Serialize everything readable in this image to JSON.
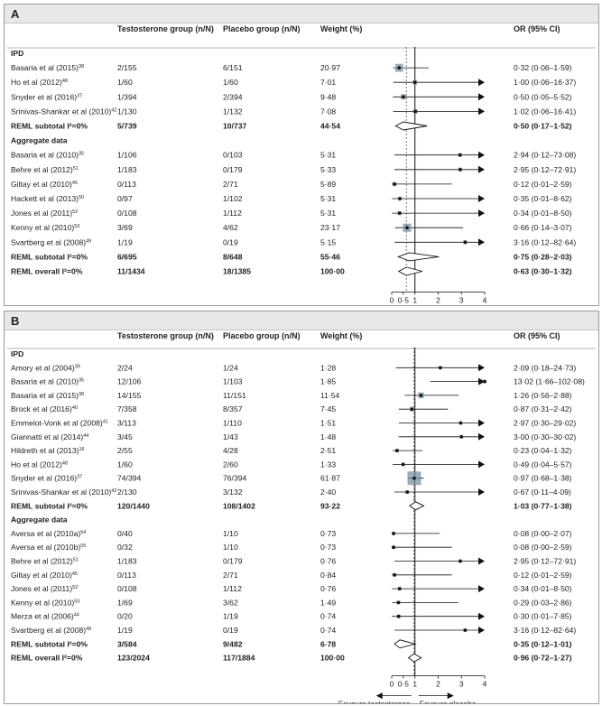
{
  "colors": {
    "header_bg": "#e8e8e8",
    "ci_box": "#7b8fa1",
    "text": "#222222"
  },
  "columns": {
    "study": "",
    "testosterone": "Testosterone group (n/N)",
    "placebo": "Placebo group (n/N)",
    "weight": "Weight (%)",
    "or": "OR (95% CI)"
  },
  "axis": {
    "tick_labels": [
      "0",
      "0·5",
      "1",
      "2",
      "3",
      "4"
    ],
    "favours_left": "Favours testosterone",
    "favours_right": "Favours placebo"
  },
  "chart_data": [
    {
      "panel": "A",
      "type": "forest",
      "xlim": [
        0,
        4
      ],
      "null_line": 1,
      "overall_dashed": 0.63,
      "arrow_cap": 4,
      "rows": [
        {
          "kind": "section",
          "label": "IPD"
        },
        {
          "kind": "study",
          "label": "Basaria et al (2015)",
          "sup": "38",
          "t": "2/155",
          "p": "6/151",
          "w": "20·97",
          "or": "0·32 (0·06–1·59)",
          "est": 0.32,
          "lo": 0.06,
          "hi": 1.59
        },
        {
          "kind": "study",
          "label": "Ho et al (2012)",
          "sup": "48",
          "t": "1/60",
          "p": "1/60",
          "w": "7·01",
          "or": "1·00 (0·06–16·37)",
          "est": 1.0,
          "lo": 0.06,
          "hi": 16.37
        },
        {
          "kind": "study",
          "label": "Snyder et al (2016)",
          "sup": "37",
          "t": "1/394",
          "p": "2/394",
          "w": "9·48",
          "or": "0·50 (0·05–5·52)",
          "est": 0.5,
          "lo": 0.05,
          "hi": 5.52
        },
        {
          "kind": "study",
          "label": "Srinivas-Shankar et al (2010)",
          "sup": "42",
          "t": "1/130",
          "p": "1/132",
          "w": "7·08",
          "or": "1·02 (0·06–16·41)",
          "est": 1.02,
          "lo": 0.06,
          "hi": 16.41
        },
        {
          "kind": "subtotal",
          "label": "REML subtotal I²=0%",
          "t": "5/739",
          "p": "10/737",
          "w": "44·54",
          "or": "0·50 (0·17–1·52)",
          "est": 0.5,
          "lo": 0.17,
          "hi": 1.52
        },
        {
          "kind": "section",
          "label": "Aggregate data"
        },
        {
          "kind": "study",
          "label": "Basaria et al (2010)",
          "sup": "35",
          "t": "1/106",
          "p": "0/103",
          "w": "5·31",
          "or": "2·94 (0·12–73·08)",
          "est": 2.94,
          "lo": 0.12,
          "hi": 73.08
        },
        {
          "kind": "study",
          "label": "Behre et al (2012)",
          "sup": "51",
          "t": "1/183",
          "p": "0/179",
          "w": "5·33",
          "or": "2·95 (0·12–72·91)",
          "est": 2.95,
          "lo": 0.12,
          "hi": 72.91
        },
        {
          "kind": "study",
          "label": "Giltay et al (2010)",
          "sup": "45",
          "t": "0/113",
          "p": "2/71",
          "w": "5·89",
          "or": "0·12 (0·01–2·59)",
          "est": 0.12,
          "lo": 0.01,
          "hi": 2.59
        },
        {
          "kind": "study",
          "label": "Hackett et al (2013)",
          "sup": "50",
          "t": "0/97",
          "p": "1/102",
          "w": "5·31",
          "or": "0·35 (0·01–8·62)",
          "est": 0.35,
          "lo": 0.01,
          "hi": 8.62
        },
        {
          "kind": "study",
          "label": "Jones et al (2011)",
          "sup": "52",
          "t": "0/108",
          "p": "1/112",
          "w": "5·31",
          "or": "0·34 (0·01–8·50)",
          "est": 0.34,
          "lo": 0.01,
          "hi": 8.5
        },
        {
          "kind": "study",
          "label": "Kenny et al (2010)",
          "sup": "53",
          "t": "3/69",
          "p": "4/62",
          "w": "23·17",
          "or": "0·66 (0·14–3·07)",
          "est": 0.66,
          "lo": 0.14,
          "hi": 3.07
        },
        {
          "kind": "study",
          "label": "Svartberg et al (2008)",
          "sup": "49",
          "t": "1/19",
          "p": "0/19",
          "w": "5·15",
          "or": "3·16 (0·12–82·64)",
          "est": 3.16,
          "lo": 0.12,
          "hi": 82.64
        },
        {
          "kind": "subtotal",
          "label": "REML subtotal I²=0%",
          "t": "6/695",
          "p": "8/648",
          "w": "55·46",
          "or": "0·75 (0·28–2·03)",
          "est": 0.75,
          "lo": 0.28,
          "hi": 2.03
        },
        {
          "kind": "overall",
          "label": "REML overall I²=0%",
          "t": "11/1434",
          "p": "18/1385",
          "w": "100·00",
          "or": "0·63 (0·30–1·32)",
          "est": 0.63,
          "lo": 0.3,
          "hi": 1.32
        }
      ]
    },
    {
      "panel": "B",
      "type": "forest",
      "xlim": [
        0,
        4
      ],
      "null_line": 1,
      "overall_dashed": 0.96,
      "arrow_cap": 4,
      "rows": [
        {
          "kind": "section",
          "label": "IPD"
        },
        {
          "kind": "study",
          "label": "Amory et al (2004)",
          "sup": "39",
          "t": "2/24",
          "p": "1/24",
          "w": "1·28",
          "or": "2·09 (0·18–24·73)",
          "est": 2.09,
          "lo": 0.18,
          "hi": 24.73
        },
        {
          "kind": "study",
          "label": "Basaria et al (2010)",
          "sup": "35",
          "t": "12/106",
          "p": "1/103",
          "w": "1·85",
          "or": "13·02 (1·66–102·08)",
          "est": 13.02,
          "lo": 1.66,
          "hi": 102.08
        },
        {
          "kind": "study",
          "label": "Basaria et al (2015)",
          "sup": "38",
          "t": "14/155",
          "p": "11/151",
          "w": "11·54",
          "or": "1·26 (0·56–2·88)",
          "est": 1.26,
          "lo": 0.56,
          "hi": 2.88
        },
        {
          "kind": "study",
          "label": "Brock et al (2016)",
          "sup": "40",
          "t": "7/358",
          "p": "8/357",
          "w": "7·45",
          "or": "0·87 (0·31–2·42)",
          "est": 0.87,
          "lo": 0.31,
          "hi": 2.42
        },
        {
          "kind": "study",
          "label": "Emmelot-Vonk et al (2008)",
          "sup": "41",
          "t": "3/113",
          "p": "1/110",
          "w": "1·51",
          "or": "2·97 (0·30–29·02)",
          "est": 2.97,
          "lo": 0.3,
          "hi": 29.02
        },
        {
          "kind": "study",
          "label": "Giannatti et al (2014)",
          "sup": "44",
          "t": "3/45",
          "p": "1/43",
          "w": "1·48",
          "or": "3·00 (0·30–30·02)",
          "est": 3.0,
          "lo": 0.3,
          "hi": 30.02
        },
        {
          "kind": "study",
          "label": "Hildreth et al (2013)",
          "sup": "16",
          "t": "2/55",
          "p": "4/28",
          "w": "2·51",
          "or": "0·23 (0·04–1·32)",
          "est": 0.23,
          "lo": 0.04,
          "hi": 1.32
        },
        {
          "kind": "study",
          "label": "Ho et al (2012)",
          "sup": "48",
          "t": "1/60",
          "p": "2/60",
          "w": "1·33",
          "or": "0·49 (0·04–5·57)",
          "est": 0.49,
          "lo": 0.04,
          "hi": 5.57
        },
        {
          "kind": "study",
          "label": "Snyder et al (2016)",
          "sup": "37",
          "t": "74/394",
          "p": "76/394",
          "w": "61·87",
          "or": "0·97 (0·68–1·38)",
          "est": 0.97,
          "lo": 0.68,
          "hi": 1.38
        },
        {
          "kind": "study",
          "label": "Srinivas-Shankar et al (2010)",
          "sup": "42",
          "t": "2/130",
          "p": "3/132",
          "w": "2·40",
          "or": "0·67 (0·11–4·09)",
          "est": 0.67,
          "lo": 0.11,
          "hi": 4.09
        },
        {
          "kind": "subtotal",
          "label": "REML subtotal I²=0%",
          "t": "120/1440",
          "p": "108/1402",
          "w": "93·22",
          "or": "1·03 (0·77–1·38)",
          "est": 1.03,
          "lo": 0.77,
          "hi": 1.38
        },
        {
          "kind": "section",
          "label": "Aggregate data"
        },
        {
          "kind": "study",
          "label": "Aversa et al (2010a)",
          "sup": "54",
          "t": "0/40",
          "p": "1/10",
          "w": "0·73",
          "or": "0·08 (0·00–2·07)",
          "est": 0.08,
          "lo": 0.0,
          "hi": 2.07
        },
        {
          "kind": "study",
          "label": "Aversa et al (2010b)",
          "sup": "55",
          "t": "0/32",
          "p": "1/10",
          "w": "0·73",
          "or": "0·08 (0·00–2·59)",
          "est": 0.08,
          "lo": 0.0,
          "hi": 2.59
        },
        {
          "kind": "study",
          "label": "Behre et al (2012)",
          "sup": "51",
          "t": "1/183",
          "p": "0/179",
          "w": "0·76",
          "or": "2·95 (0·12–72·91)",
          "est": 2.95,
          "lo": 0.12,
          "hi": 72.91
        },
        {
          "kind": "study",
          "label": "Giltay et al (2010)",
          "sup": "45",
          "t": "0/113",
          "p": "2/71",
          "w": "0·84",
          "or": "0·12 (0·01–2·59)",
          "est": 0.12,
          "lo": 0.01,
          "hi": 2.59
        },
        {
          "kind": "study",
          "label": "Jones et al (2011)",
          "sup": "52",
          "t": "0/108",
          "p": "1/112",
          "w": "0·76",
          "or": "0·34 (0·01–8·50)",
          "est": 0.34,
          "lo": 0.01,
          "hi": 8.5
        },
        {
          "kind": "study",
          "label": "Kenny et al (2010)",
          "sup": "53",
          "t": "1/69",
          "p": "3/62",
          "w": "1·49",
          "or": "0·29 (0·03–2·86)",
          "est": 0.29,
          "lo": 0.03,
          "hi": 2.86
        },
        {
          "kind": "study",
          "label": "Merza et al (2006)",
          "sup": "44",
          "t": "0/20",
          "p": "1/19",
          "w": "0·74",
          "or": "0·30 (0·01–7·85)",
          "est": 0.3,
          "lo": 0.01,
          "hi": 7.85
        },
        {
          "kind": "study",
          "label": "Svartberg et al (2008)",
          "sup": "49",
          "t": "1/19",
          "p": "0/19",
          "w": "0·74",
          "or": "3·16 (0·12–82·64)",
          "est": 3.16,
          "lo": 0.12,
          "hi": 82.64
        },
        {
          "kind": "subtotal",
          "label": "REML subtotal I²=0%",
          "t": "3/584",
          "p": "9/482",
          "w": "6·78",
          "or": "0·35 (0·12–1·01)",
          "est": 0.35,
          "lo": 0.12,
          "hi": 1.01
        },
        {
          "kind": "overall",
          "label": "REML overall I²=0%",
          "t": "123/2024",
          "p": "117/1884",
          "w": "100·00",
          "or": "0·96 (0·72–1·27)",
          "est": 0.96,
          "lo": 0.72,
          "hi": 1.27
        }
      ]
    }
  ]
}
